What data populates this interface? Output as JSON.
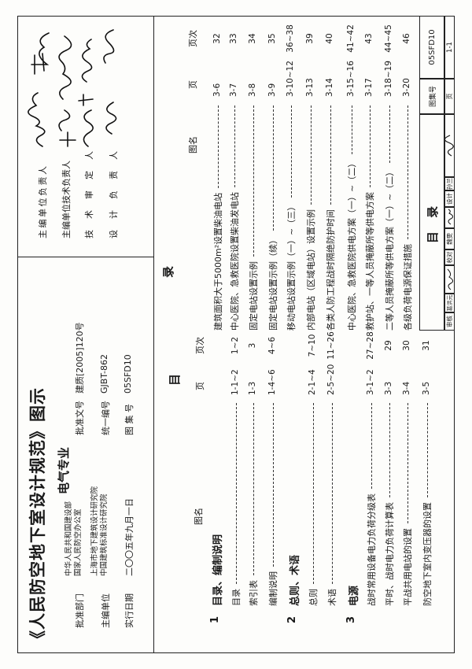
{
  "header": {
    "title": "《人民防空地下室设计规范》图示",
    "subtitle": "电气专业",
    "approval_dept_label": "批准部门",
    "approval_dept_lines": [
      "中华人民共和国建设部",
      "国家人民防空办公室"
    ],
    "editor_unit_label": "主编单位",
    "editor_unit_lines": [
      "上海市地下建筑设计研究院",
      "中国建筑标准设计研究院"
    ],
    "effective_date_label": "实行日期",
    "effective_date": "二〇〇五年九月一日",
    "approval_no_label": "批准文号",
    "approval_no": "建质[2005]120号",
    "unified_no_label": "统一编号",
    "unified_no": "GJBT-862",
    "atlas_no_label": "图 集 号",
    "atlas_no": "05SFD10"
  },
  "responsible": [
    {
      "label": "主编单位负责人"
    },
    {
      "label": "主编单位技术负责人"
    },
    {
      "label": "技术审定人"
    },
    {
      "label": "设计负责人"
    }
  ],
  "toc": {
    "heading_left": "目",
    "heading_right": "录",
    "col_name": "图名",
    "col_page": "页",
    "col_seq": "页次",
    "left_sections": [
      {
        "num": "1",
        "title": "目录、编制说明"
      },
      {
        "num": "2",
        "title": "总则、术语"
      },
      {
        "num": "3",
        "title": "电源"
      }
    ],
    "left_entries": [
      {
        "name": "目录",
        "code": "1-1~2",
        "seq": "1~2"
      },
      {
        "name": "索引表",
        "code": "1-3",
        "seq": "3"
      },
      {
        "name": "编制说明",
        "code": "1-4~6",
        "seq": "4~6"
      },
      {
        "name": "总则",
        "code": "2-1~4",
        "seq": "7~10"
      },
      {
        "name": "术语",
        "code": "2-5~20",
        "seq": "11~26"
      },
      {
        "name": "战时常用设备电力负荷分级表",
        "code": "3-1~2",
        "seq": "27~28"
      },
      {
        "name": "平时、战时电力负荷计算表",
        "code": "3-3",
        "seq": "29"
      },
      {
        "name": "平战共用电站的设置",
        "code": "3-4",
        "seq": "30"
      },
      {
        "name": "防空地下室内变压器的设置",
        "code": "3-5",
        "seq": "31"
      }
    ],
    "right_entries": [
      {
        "name": "建筑面积大于5000m²设置柴油电站",
        "code": "3-6",
        "seq": "32"
      },
      {
        "name": "中心医院、急救医院设置柴油发电站",
        "code": "3-7",
        "seq": "33"
      },
      {
        "name": "固定电站设置示例",
        "code": "3-8",
        "seq": "34"
      },
      {
        "name": "固定电站设置示例（续）",
        "code": "3-9",
        "seq": "35"
      },
      {
        "name": "移动电站设置示例（一）~（三）",
        "code": "3-10~12",
        "seq": "36~38"
      },
      {
        "name": "内部电站（区域电站）设置示例",
        "code": "3-13",
        "seq": "39"
      },
      {
        "name": "各类人防工程战时隔绝防护时间",
        "code": "3-14",
        "seq": "40"
      },
      {
        "name": "中心医院、急救医院供电方案（一）~（二）",
        "code": "3-15~16",
        "seq": "41~42"
      },
      {
        "name": "救护站、一等人员掩蔽所等供电方案",
        "code": "3-17",
        "seq": "43"
      },
      {
        "name": "二等人员掩蔽所等供电方案（一）~（二）",
        "code": "3-18~19",
        "seq": "44~45"
      },
      {
        "name": "各级负荷电源保证措施",
        "code": "3-20",
        "seq": "46"
      }
    ]
  },
  "title_block": {
    "title": "目  录",
    "atlas_no_label": "图集号",
    "atlas_no": "05SFD10",
    "page_label": "页",
    "page": "1-1",
    "review_label": "审核",
    "reviewer": "葛洪元",
    "check_label": "校对",
    "checker": "魏雯",
    "design_label": "设计",
    "designer": "孙兰"
  }
}
